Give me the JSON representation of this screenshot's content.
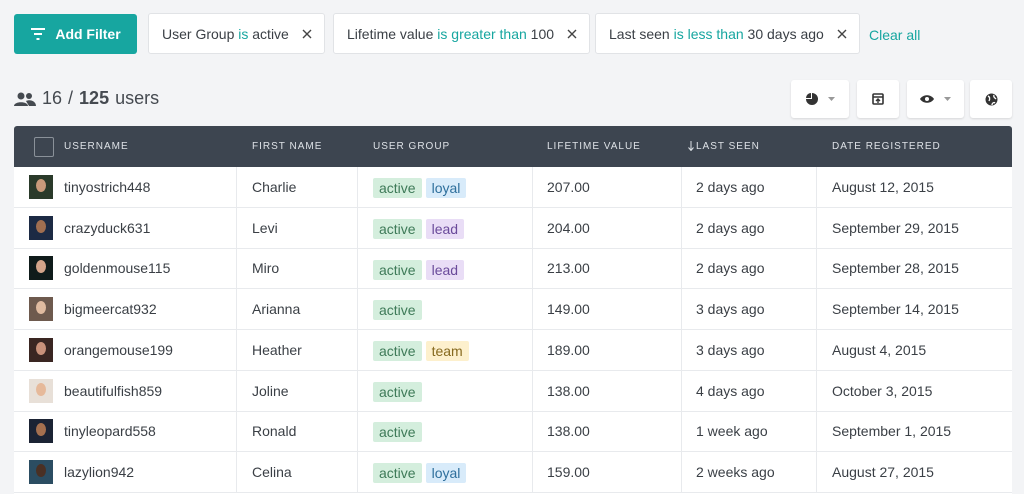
{
  "toolbar": {
    "add_filter": "Add Filter",
    "filters": [
      {
        "field": "User Group",
        "operator": "is",
        "value": "active"
      },
      {
        "field": "Lifetime value",
        "operator": "is greater than",
        "value": "100"
      },
      {
        "field": "Last seen",
        "operator": "is less than",
        "value": "30 days ago"
      }
    ],
    "clear_all": "Clear all"
  },
  "count": {
    "shown": "16",
    "separator": "/",
    "total": "125",
    "label": "users"
  },
  "table": {
    "columns": [
      "USERNAME",
      "FIRST NAME",
      "USER GROUP",
      "LIFETIME VALUE",
      "LAST SEEN",
      "DATE REGISTERED"
    ],
    "rows": [
      [
        "tinyostrich448",
        "Charlie",
        [
          {
            "text": "active",
            "bg": "#d4eedd",
            "fg": "#3e7a58"
          },
          {
            "text": "loyal",
            "bg": "#d8ebfa",
            "fg": "#2e6f9c"
          }
        ],
        "207.00",
        "2 days ago",
        "August 12, 2015"
      ],
      [
        "crazyduck631",
        "Levi",
        [
          {
            "text": "active",
            "bg": "#d4eedd",
            "fg": "#3e7a58"
          },
          {
            "text": "lead",
            "bg": "#e9ddf6",
            "fg": "#6a4a9a"
          }
        ],
        "204.00",
        "2 days ago",
        "September 29, 2015"
      ],
      [
        "goldenmouse115",
        "Miro",
        [
          {
            "text": "active",
            "bg": "#d4eedd",
            "fg": "#3e7a58"
          },
          {
            "text": "lead",
            "bg": "#e9ddf6",
            "fg": "#6a4a9a"
          }
        ],
        "213.00",
        "2 days ago",
        "September 28, 2015"
      ],
      [
        "bigmeercat932",
        "Arianna",
        [
          {
            "text": "active",
            "bg": "#d4eedd",
            "fg": "#3e7a58"
          }
        ],
        "149.00",
        "3 days ago",
        "September 14, 2015"
      ],
      [
        "orangemouse199",
        "Heather",
        [
          {
            "text": "active",
            "bg": "#d4eedd",
            "fg": "#3e7a58"
          },
          {
            "text": "team",
            "bg": "#fdf0cd",
            "fg": "#86691e"
          }
        ],
        "189.00",
        "3 days ago",
        "August 4, 2015"
      ],
      [
        "beautifulfish859",
        "Joline",
        [
          {
            "text": "active",
            "bg": "#d4eedd",
            "fg": "#3e7a58"
          }
        ],
        "138.00",
        "4 days ago",
        "October 3, 2015"
      ],
      [
        "tinyleopard558",
        "Ronald",
        [
          {
            "text": "active",
            "bg": "#d4eedd",
            "fg": "#3e7a58"
          }
        ],
        "138.00",
        "1 week ago",
        "September 1, 2015"
      ],
      [
        "lazylion942",
        "Celina",
        [
          {
            "text": "active",
            "bg": "#d4eedd",
            "fg": "#3e7a58"
          },
          {
            "text": "loyal",
            "bg": "#d8ebfa",
            "fg": "#2e6f9c"
          }
        ],
        "159.00",
        "2 weeks ago",
        "August 27, 2015"
      ]
    ]
  }
}
